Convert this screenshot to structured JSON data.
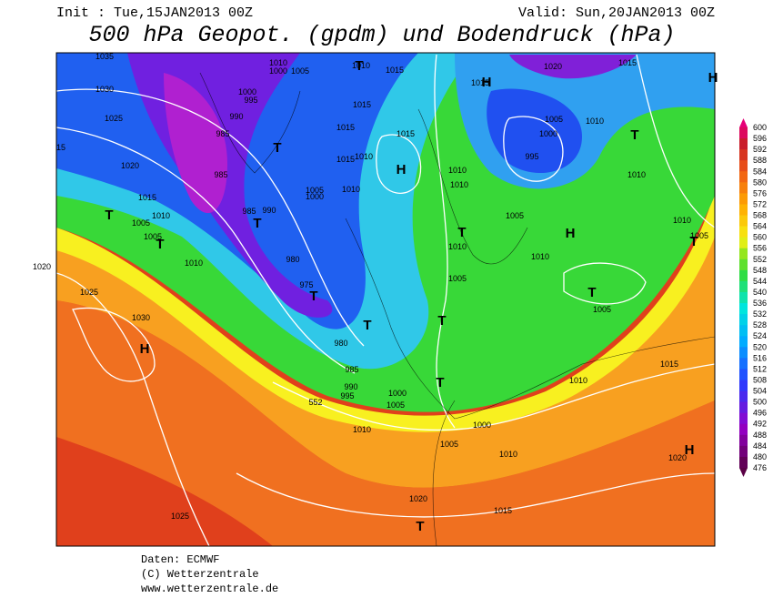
{
  "header": {
    "init": "Init : Tue,15JAN2013 00Z",
    "valid": "Valid: Sun,20JAN2013 00Z",
    "title": "500 hPa Geopot. (gpdm) und Bodendruck (hPa)"
  },
  "map": {
    "isobar_labels": [
      "1035",
      "1030",
      "1025",
      "1020",
      "1015",
      "1010",
      "1005",
      "1005",
      "1010",
      "1020",
      "1025",
      "1030",
      "1025",
      "1010",
      "1000",
      "1005",
      "1000",
      "995",
      "990",
      "985",
      "985",
      "985",
      "990",
      "980",
      "975",
      "980",
      "985",
      "990",
      "995",
      "552",
      "1000",
      "1005",
      "1010",
      "1005",
      "1000",
      "1010",
      "1020",
      "1015",
      "1010",
      "1015",
      "1015",
      "1015",
      "1015",
      "1015",
      "1010",
      "1005",
      "1000",
      "1010",
      "1010",
      "1010",
      "1010",
      "1005",
      "1015",
      "1020",
      "1015",
      "1005",
      "1000",
      "995",
      "1010",
      "1010",
      "1005",
      "1010",
      "1010",
      "1005",
      "1005",
      "1010",
      "1015",
      "1020",
      "15"
    ],
    "centers": [
      "H",
      "H",
      "H",
      "H",
      "H",
      "H",
      "T",
      "T",
      "T",
      "T",
      "T",
      "T",
      "T",
      "T",
      "T",
      "T",
      "T",
      "T",
      "T",
      "T"
    ]
  },
  "colorbar": {
    "ticks": [
      600,
      596,
      592,
      588,
      584,
      580,
      576,
      572,
      568,
      564,
      560,
      556,
      552,
      548,
      544,
      540,
      536,
      532,
      528,
      524,
      520,
      516,
      512,
      508,
      504,
      500,
      496,
      492,
      488,
      484,
      480,
      476
    ]
  },
  "footer": {
    "source": "Daten: ECMWF",
    "copyright": "(C) Wetterzentrale",
    "url": "www.wetterzentrale.de"
  }
}
